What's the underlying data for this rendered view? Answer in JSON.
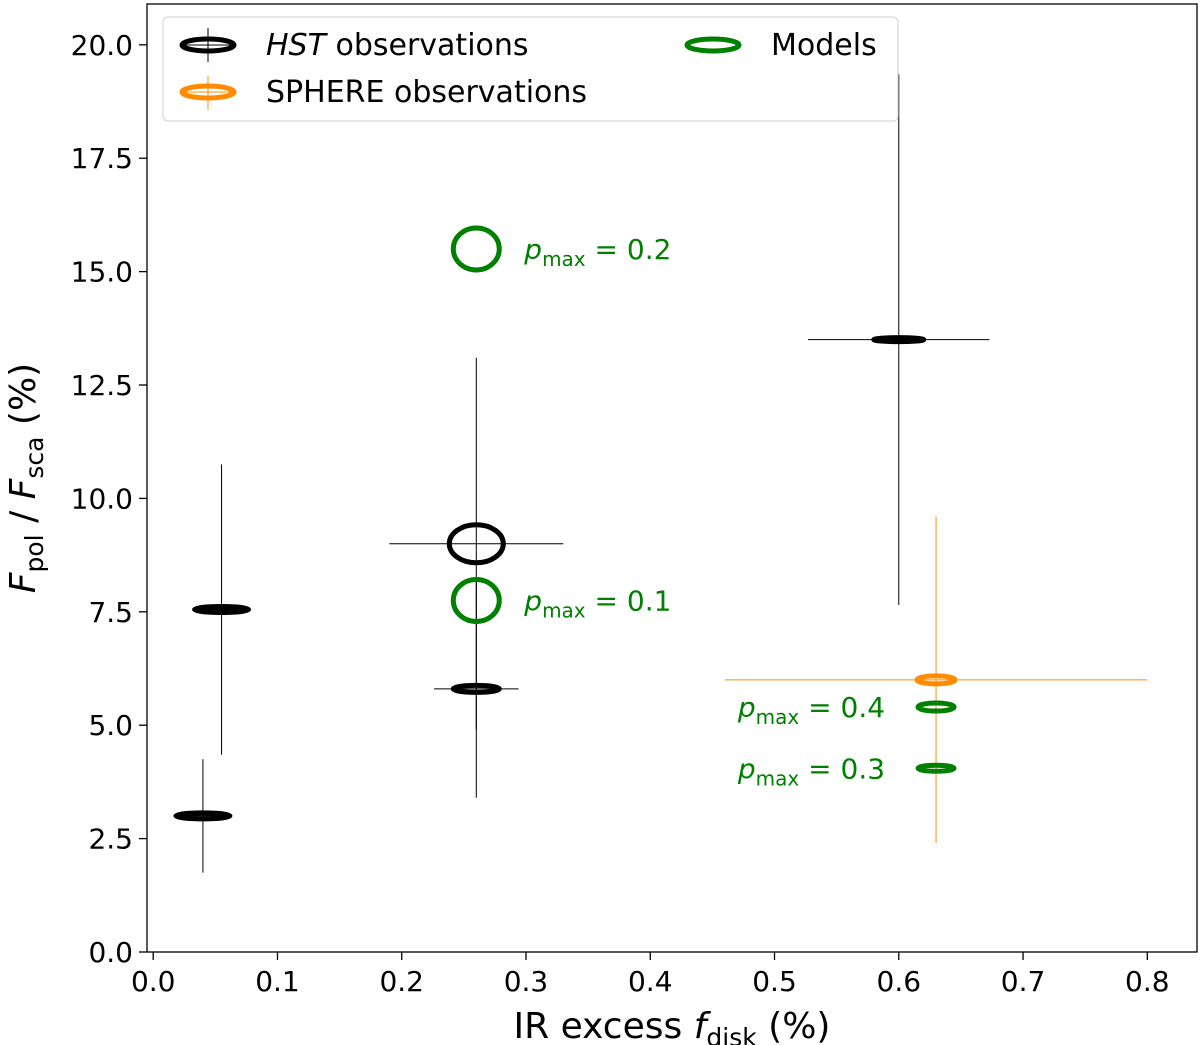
{
  "chart_data": {
    "type": "scatter",
    "xlabel": {
      "main": "IR excess ",
      "var": "f",
      "sub": "disk",
      "unit": " (%)"
    },
    "ylabel": {
      "num": "F",
      "num_sub": "pol",
      "sep": " / ",
      "den": "F",
      "den_sub": "sca",
      "unit": " (%)"
    },
    "xlim": [
      -0.005,
      0.84
    ],
    "ylim": [
      0,
      20.9
    ],
    "xticks": [
      "0.0",
      "0.1",
      "0.2",
      "0.3",
      "0.4",
      "0.5",
      "0.6",
      "0.7",
      "0.8"
    ],
    "yticks": [
      "0.0",
      "2.5",
      "5.0",
      "7.5",
      "10.0",
      "12.5",
      "15.0",
      "17.5",
      "20.0"
    ],
    "grid": false,
    "legend": {
      "position": "top-left",
      "entries": [
        {
          "label_italic": "HST",
          "label": " observations",
          "color": "#000000"
        },
        {
          "label": "SPHERE observations",
          "color": "#ff8c00"
        },
        {
          "label": "Models",
          "color": "#008000"
        }
      ]
    },
    "series": [
      {
        "name": "HST observations",
        "color": "#000000",
        "points": [
          {
            "x": 0.04,
            "y": 3.0,
            "xerr": 0.017,
            "yerr_low": 1.25,
            "yerr_high": 1.25
          },
          {
            "x": 0.055,
            "y": 7.55,
            "xerr": 0.018,
            "yerr_low": 3.2,
            "yerr_high": 3.2
          },
          {
            "x": 0.26,
            "y": 9.0,
            "xerr": 0.07,
            "yerr_low": 4.1,
            "yerr_high": 4.1
          },
          {
            "x": 0.26,
            "y": 5.8,
            "xerr": 0.034,
            "yerr_low": 2.4,
            "yerr_high": 2.4
          },
          {
            "x": 0.6,
            "y": 13.5,
            "xerr": 0.073,
            "yerr_low": 5.85,
            "yerr_high": 5.85
          }
        ]
      },
      {
        "name": "SPHERE observations",
        "color": "#ff8c00",
        "points": [
          {
            "x": 0.63,
            "y": 6.0,
            "xerr": 0.17,
            "yerr_low": 3.6,
            "yerr_high": 3.6
          }
        ]
      },
      {
        "name": "Models",
        "color": "#008000",
        "points": [
          {
            "x": 0.26,
            "y": 15.5,
            "label": "= 0.2"
          },
          {
            "x": 0.26,
            "y": 7.75,
            "label": "= 0.1"
          },
          {
            "x": 0.63,
            "y": 5.4,
            "label": "= 0.4"
          },
          {
            "x": 0.63,
            "y": 4.05,
            "label": "= 0.3"
          }
        ]
      }
    ],
    "annotation_symbol": {
      "var": "p",
      "sub": "max"
    }
  }
}
